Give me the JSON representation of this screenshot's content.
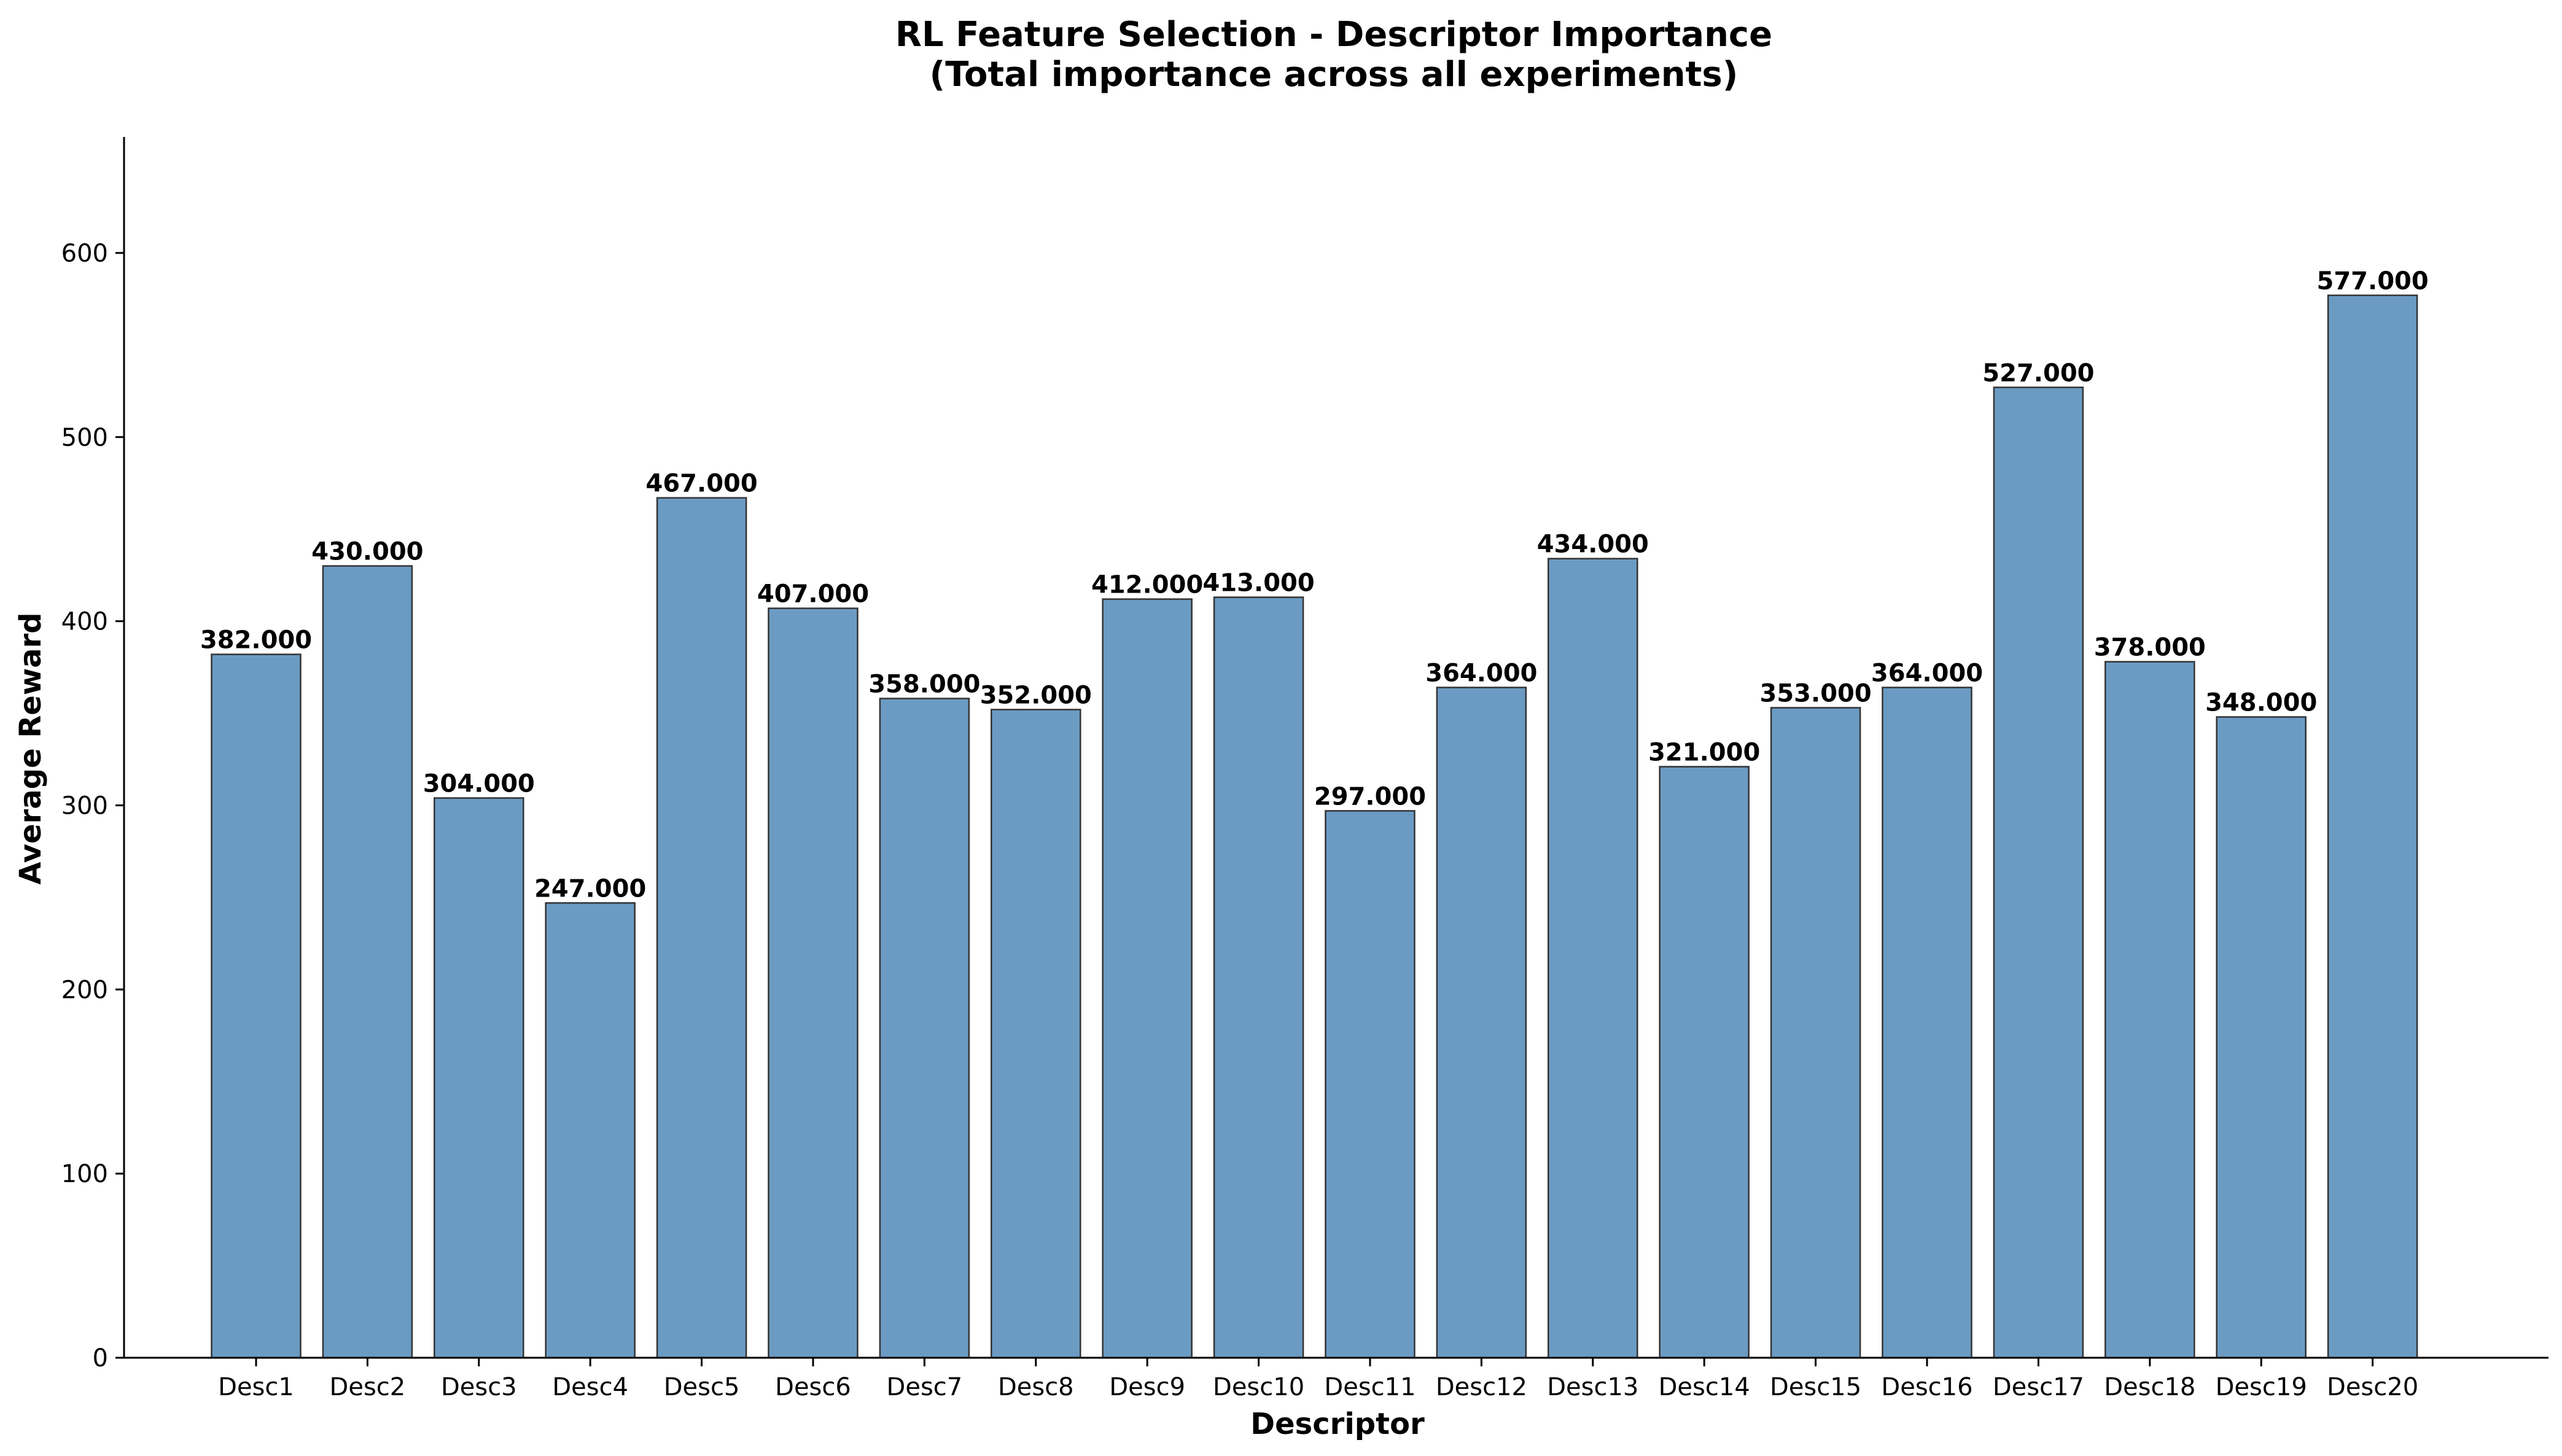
{
  "chart_data": {
    "type": "bar",
    "title": "RL Feature Selection - Descriptor Importance",
    "subtitle": "(Total importance across all experiments)",
    "xlabel": "Descriptor",
    "ylabel": "Average Reward",
    "categories": [
      "Desc1",
      "Desc2",
      "Desc3",
      "Desc4",
      "Desc5",
      "Desc6",
      "Desc7",
      "Desc8",
      "Desc9",
      "Desc10",
      "Desc11",
      "Desc12",
      "Desc13",
      "Desc14",
      "Desc15",
      "Desc16",
      "Desc17",
      "Desc18",
      "Desc19",
      "Desc20"
    ],
    "values": [
      382,
      430,
      304,
      247,
      467,
      407,
      358,
      352,
      412,
      413,
      297,
      364,
      434,
      321,
      353,
      364,
      527,
      378,
      348,
      577
    ],
    "value_labels": [
      "382.000",
      "430.000",
      "304.000",
      "247.000",
      "467.000",
      "407.000",
      "358.000",
      "352.000",
      "412.000",
      "413.000",
      "297.000",
      "364.000",
      "434.000",
      "321.000",
      "353.000",
      "364.000",
      "527.000",
      "378.000",
      "348.000",
      "577.000"
    ],
    "yticks": [
      0,
      100,
      200,
      300,
      400,
      500,
      600
    ],
    "ylim": [
      0,
      663
    ],
    "grid": false,
    "legend": "none",
    "bar_color": "#6b9bc3",
    "bar_edge_color": "#333333"
  }
}
